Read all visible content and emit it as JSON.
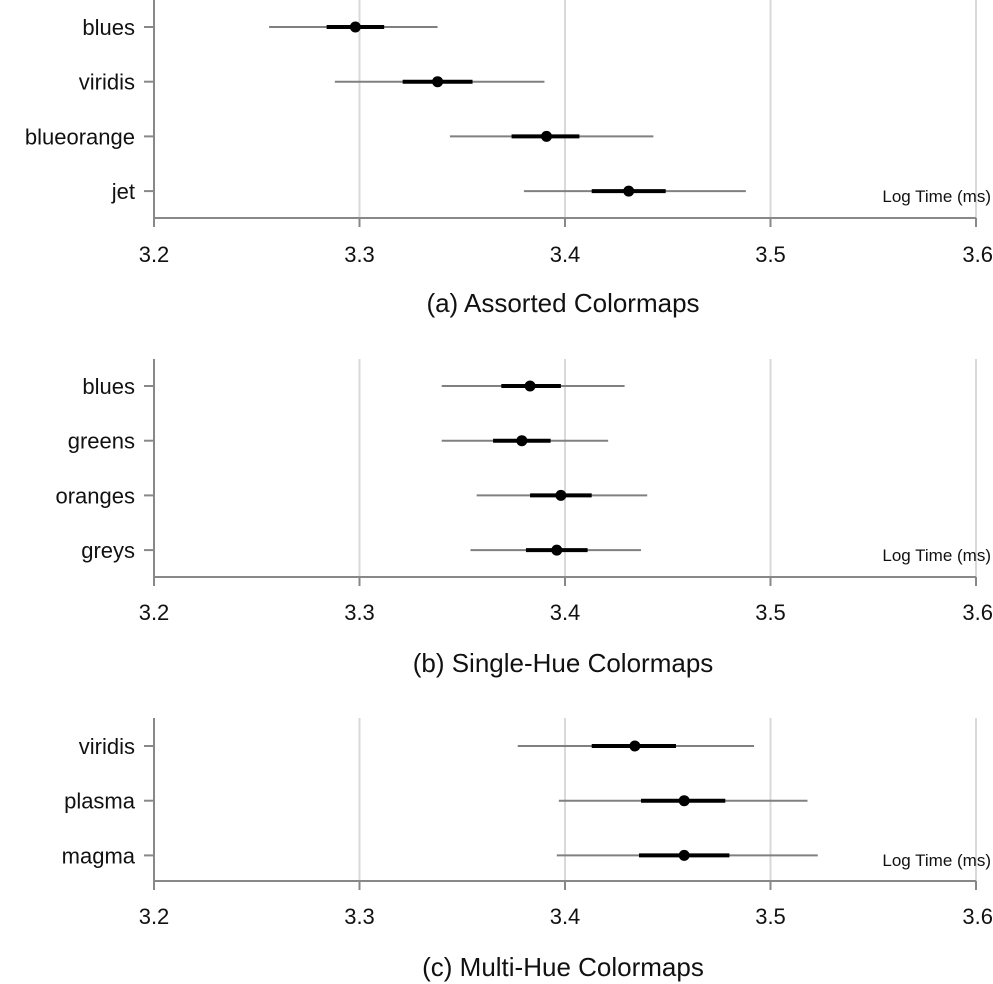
{
  "colors": {
    "grid": "#d9d9d9",
    "axis": "#888888",
    "ci_outer": "#808080",
    "ci_inner": "#000000",
    "point": "#000000"
  },
  "chart_data": [
    {
      "type": "interval",
      "title": "(a) Assorted Colormaps",
      "xlabel": "Log Time (ms)",
      "xlim": [
        3.2,
        3.6
      ],
      "ticks": [
        "3.2",
        "3.3",
        "3.4",
        "3.5",
        "3.6"
      ],
      "grid": true,
      "categories": [
        "blues",
        "viridis",
        "blueorange",
        "jet"
      ],
      "mean": [
        3.298,
        3.338,
        3.391,
        3.431
      ],
      "ci_inner": [
        [
          3.284,
          3.312
        ],
        [
          3.321,
          3.355
        ],
        [
          3.374,
          3.407
        ],
        [
          3.413,
          3.449
        ]
      ],
      "ci_outer": [
        [
          3.256,
          3.338
        ],
        [
          3.288,
          3.39
        ],
        [
          3.344,
          3.443
        ],
        [
          3.38,
          3.488
        ]
      ]
    },
    {
      "type": "interval",
      "title": "(b) Single-Hue Colormaps",
      "xlabel": "Log Time (ms)",
      "xlim": [
        3.2,
        3.6
      ],
      "ticks": [
        "3.2",
        "3.3",
        "3.4",
        "3.5",
        "3.6"
      ],
      "grid": true,
      "categories": [
        "blues",
        "greens",
        "oranges",
        "greys"
      ],
      "mean": [
        3.383,
        3.379,
        3.398,
        3.396
      ],
      "ci_inner": [
        [
          3.369,
          3.398
        ],
        [
          3.365,
          3.393
        ],
        [
          3.383,
          3.413
        ],
        [
          3.381,
          3.411
        ]
      ],
      "ci_outer": [
        [
          3.34,
          3.429
        ],
        [
          3.34,
          3.421
        ],
        [
          3.357,
          3.44
        ],
        [
          3.354,
          3.437
        ]
      ]
    },
    {
      "type": "interval",
      "title": "(c) Multi-Hue Colormaps",
      "xlabel": "Log Time (ms)",
      "xlim": [
        3.2,
        3.6
      ],
      "ticks": [
        "3.2",
        "3.3",
        "3.4",
        "3.5",
        "3.6"
      ],
      "grid": true,
      "categories": [
        "viridis",
        "plasma",
        "magma"
      ],
      "mean": [
        3.434,
        3.458,
        3.458
      ],
      "ci_inner": [
        [
          3.413,
          3.454
        ],
        [
          3.437,
          3.478
        ],
        [
          3.436,
          3.48
        ]
      ],
      "ci_outer": [
        [
          3.377,
          3.492
        ],
        [
          3.397,
          3.518
        ],
        [
          3.396,
          3.523
        ]
      ]
    }
  ]
}
